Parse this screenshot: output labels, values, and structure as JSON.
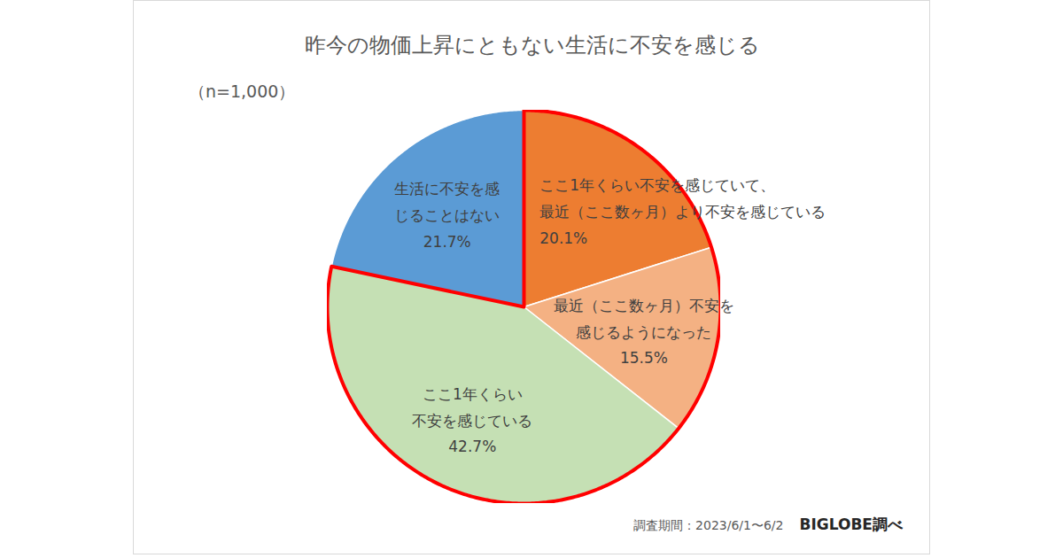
{
  "chart_data": {
    "type": "pie",
    "title": "昨今の物価上昇にともない生活に不安を感じる",
    "subtitle": "（n=1,000）",
    "categories": [
      "ここ1年くらい不安を感じていて、\n最近（ここ数ヶ月）より不安を感じている",
      "最近（ここ数ヶ月）不安を\n感じるようになった",
      "ここ1年くらい\n不安を感じている",
      "生活に不安を感\nじることはない"
    ],
    "values": [
      20.1,
      15.5,
      42.7,
      21.7
    ],
    "value_labels": [
      "20.1%",
      "15.5%",
      "42.7%",
      "21.7%"
    ],
    "colors": [
      "#ED7D31",
      "#F4B183",
      "#C5E0B4",
      "#5B9BD5"
    ],
    "data_labels": true,
    "caption": "調査期間：2023/6/1〜6/2",
    "source": "BIGLOBE調べ"
  }
}
